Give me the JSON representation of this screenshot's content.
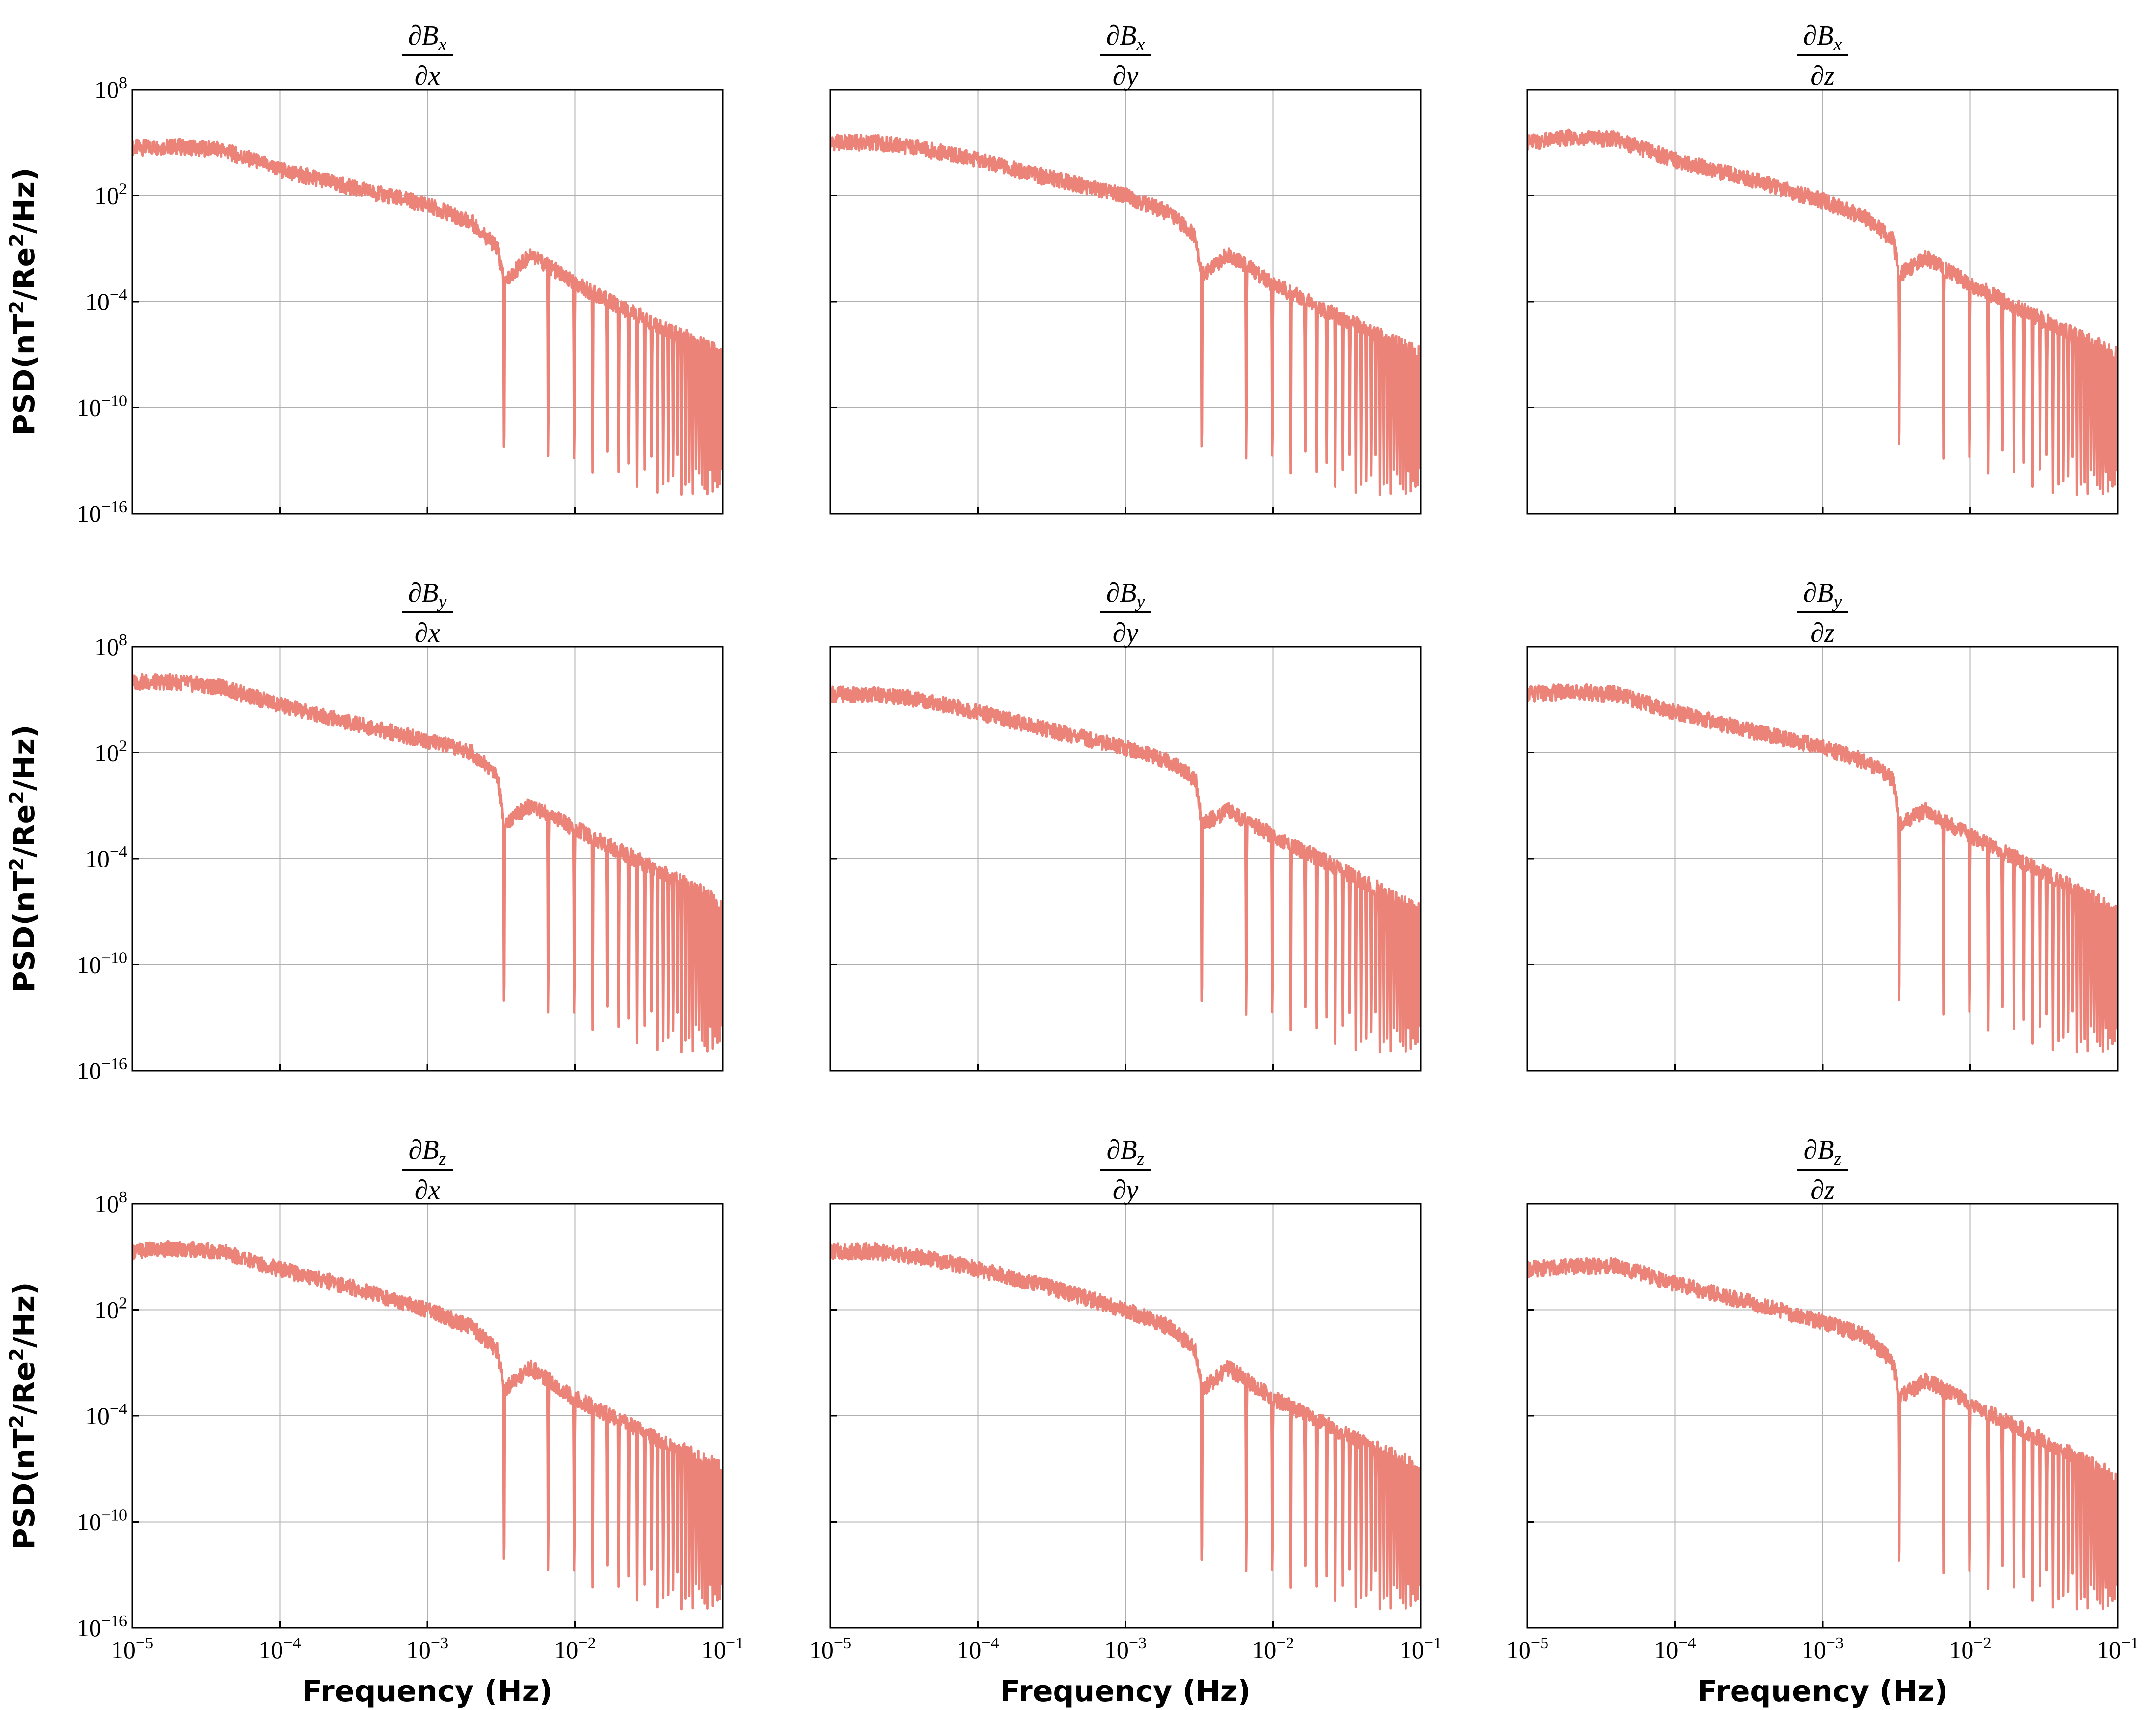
{
  "colors": {
    "series": "#ec8379",
    "grid": "#b0b0b0",
    "axes": "#000000"
  },
  "chart_data": {
    "type": "line",
    "layout": {
      "rows": 3,
      "cols": 3
    },
    "xscale": "log",
    "yscale": "log",
    "xlim": [
      1e-05,
      0.1
    ],
    "ylim": [
      1e-16,
      100000000.0
    ],
    "grid": true,
    "x_ticks": [
      1e-05,
      0.0001,
      0.001,
      0.01,
      0.1
    ],
    "x_tick_labels": [
      {
        "base": "10",
        "exp": "−5"
      },
      {
        "base": "10",
        "exp": "−4"
      },
      {
        "base": "10",
        "exp": "−3"
      },
      {
        "base": "10",
        "exp": "−2"
      },
      {
        "base": "10",
        "exp": "−1"
      }
    ],
    "y_ticks": [
      1e-16,
      1e-10,
      0.0001,
      100,
      100000000.0
    ],
    "y_tick_labels": [
      {
        "base": "10",
        "exp": "−16"
      },
      {
        "base": "10",
        "exp": "−10"
      },
      {
        "base": "10",
        "exp": "−4"
      },
      {
        "base": "10",
        "exp": "2"
      },
      {
        "base": "10",
        "exp": "8"
      }
    ],
    "xlabel": "Frequency (Hz)",
    "ylabel": {
      "prefix": "PSD(nT",
      "sup1": "2",
      "mid": "/Re",
      "sup2": "2",
      "suffix": "/Hz)"
    },
    "notch_frequencies_hz": [
      0.0033,
      0.0066,
      0.0099,
      0.0132,
      0.0165,
      0.0198,
      0.0231,
      0.0264,
      0.0297,
      0.033,
      0.0363,
      0.0396,
      0.0429,
      0.0462,
      0.0495,
      0.0528,
      0.0561,
      0.0594,
      0.0627,
      0.066,
      0.0693,
      0.0726,
      0.0759,
      0.0792,
      0.0825,
      0.0858,
      0.0891,
      0.0924,
      0.0957,
      0.099
    ],
    "notch_floor": 1e-15,
    "panels": [
      {
        "title": {
          "num_base": "∂B",
          "num_sub": "x",
          "den": "∂x"
        },
        "series": [
          {
            "x": [
              1e-05,
              2e-05,
              4e-05,
              0.0001,
              0.0003,
              0.001,
              0.002,
              0.003,
              0.0033,
              0.005,
              0.01,
              0.03,
              0.1
            ],
            "y": [
              50000,
              60000,
              40000,
              3000,
              300,
              30,
              3,
              0.1,
              0.001,
              0.05,
              0.001,
              1e-05,
              1e-07
            ]
          }
        ]
      },
      {
        "title": {
          "num_base": "∂B",
          "num_sub": "x",
          "den": "∂y"
        },
        "series": [
          {
            "x": [
              1e-05,
              2e-05,
              4e-05,
              0.0001,
              0.0003,
              0.001,
              0.002,
              0.003,
              0.0033,
              0.005,
              0.01,
              0.03,
              0.1
            ],
            "y": [
              100000,
              100000,
              50000,
              10000,
              1000,
              100,
              10,
              0.5,
              0.003,
              0.05,
              0.001,
              1e-05,
              1e-07
            ]
          }
        ]
      },
      {
        "title": {
          "num_base": "∂B",
          "num_sub": "x",
          "den": "∂z"
        },
        "series": [
          {
            "x": [
              1e-05,
              2e-05,
              4e-05,
              0.0001,
              0.0003,
              0.001,
              0.002,
              0.003,
              0.0033,
              0.005,
              0.01,
              0.03,
              0.1
            ],
            "y": [
              100000,
              200000,
              150000,
              10000,
              1000,
              50,
              5,
              0.3,
              0.003,
              0.03,
              0.001,
              1e-05,
              1e-07
            ]
          }
        ]
      },
      {
        "title": {
          "num_base": "∂B",
          "num_sub": "y",
          "den": "∂x"
        },
        "series": [
          {
            "x": [
              1e-05,
              2e-05,
              4e-05,
              0.0001,
              0.0003,
              0.001,
              0.002,
              0.003,
              0.0033,
              0.005,
              0.01,
              0.03,
              0.1
            ],
            "y": [
              1000000,
              1000000,
              500000,
              50000,
              5000,
              500,
              100,
              5,
              0.01,
              0.1,
              0.005,
              5e-05,
              3e-07
            ]
          }
        ]
      },
      {
        "title": {
          "num_base": "∂B",
          "num_sub": "y",
          "den": "∂y"
        },
        "series": [
          {
            "x": [
              1e-05,
              2e-05,
              4e-05,
              0.0001,
              0.0003,
              0.001,
              0.002,
              0.003,
              0.0033,
              0.005,
              0.01,
              0.03,
              0.1
            ],
            "y": [
              200000,
              200000,
              100000,
              20000,
              2000,
              200,
              30,
              3,
              0.01,
              0.05,
              0.002,
              2e-05,
              1e-07
            ]
          }
        ]
      },
      {
        "title": {
          "num_base": "∂B",
          "num_sub": "y",
          "den": "∂z"
        },
        "series": [
          {
            "x": [
              1e-05,
              2e-05,
              4e-05,
              0.0001,
              0.0003,
              0.001,
              0.002,
              0.003,
              0.0033,
              0.005,
              0.01,
              0.03,
              0.1
            ],
            "y": [
              200000,
              300000,
              200000,
              20000,
              2000,
              200,
              30,
              3,
              0.01,
              0.05,
              0.002,
              2e-05,
              1e-07
            ]
          }
        ]
      },
      {
        "title": {
          "num_base": "∂B",
          "num_sub": "z",
          "den": "∂x"
        },
        "series": [
          {
            "x": [
              1e-05,
              2e-05,
              4e-05,
              0.0001,
              0.0003,
              0.001,
              0.002,
              0.003,
              0.0033,
              0.005,
              0.01,
              0.03,
              0.1
            ],
            "y": [
              200000,
              300000,
              200000,
              20000,
              2000,
              100,
              10,
              0.5,
              0.003,
              0.05,
              0.001,
              1e-05,
              1e-07
            ]
          }
        ]
      },
      {
        "title": {
          "num_base": "∂B",
          "num_sub": "z",
          "den": "∂y"
        },
        "series": [
          {
            "x": [
              1e-05,
              2e-05,
              4e-05,
              0.0001,
              0.0003,
              0.001,
              0.002,
              0.003,
              0.0033,
              0.005,
              0.01,
              0.03,
              0.1
            ],
            "y": [
              200000,
              200000,
              100000,
              20000,
              2000,
              100,
              10,
              0.5,
              0.003,
              0.05,
              0.001,
              1e-05,
              1e-07
            ]
          }
        ]
      },
      {
        "title": {
          "num_base": "∂B",
          "num_sub": "z",
          "den": "∂z"
        },
        "series": [
          {
            "x": [
              1e-05,
              2e-05,
              4e-05,
              0.0001,
              0.0003,
              0.001,
              0.002,
              0.003,
              0.0033,
              0.005,
              0.01,
              0.03,
              0.1
            ],
            "y": [
              20000,
              30000,
              30000,
              3000,
              300,
              20,
              3,
              0.1,
              0.001,
              0.01,
              0.0005,
              5e-06,
              3e-08
            ]
          }
        ]
      }
    ]
  }
}
